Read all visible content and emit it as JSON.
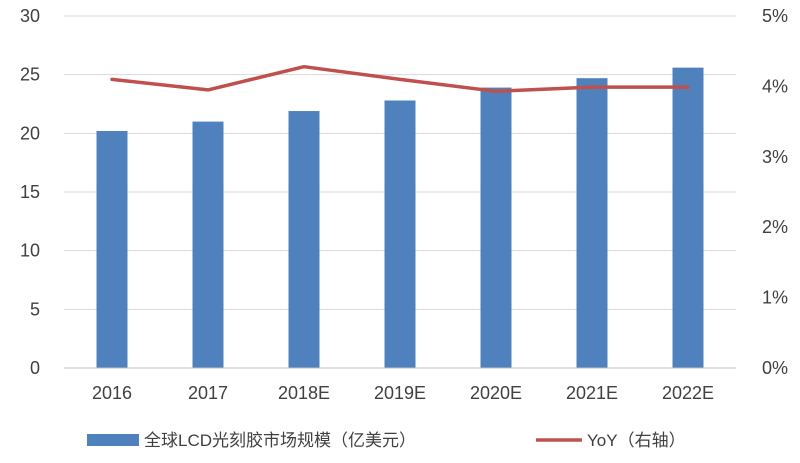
{
  "chart_data": {
    "type": "bar",
    "categories": [
      "2016",
      "2017",
      "2018E",
      "2019E",
      "2020E",
      "2021E",
      "2022E"
    ],
    "series": [
      {
        "name": "全球LCD光刻胶市场规模（亿美元）",
        "type": "bar",
        "axis": "left",
        "color": "#4f81bd",
        "values": [
          20.2,
          21.0,
          21.9,
          22.8,
          23.9,
          24.7,
          25.6
        ]
      },
      {
        "name": "YoY（右轴）",
        "type": "line",
        "axis": "right",
        "color": "#c0504d",
        "values": [
          4.1,
          3.95,
          4.28,
          4.1,
          3.93,
          3.99,
          3.99
        ]
      }
    ],
    "ylim_left": [
      0,
      30
    ],
    "yticks_left": [
      "0",
      "5",
      "10",
      "15",
      "20",
      "25",
      "30"
    ],
    "ylim_right": [
      0,
      5
    ],
    "yticks_right": [
      "0%",
      "1%",
      "2%",
      "3%",
      "4%",
      "5%"
    ],
    "grid": true,
    "legend_position": "bottom"
  }
}
